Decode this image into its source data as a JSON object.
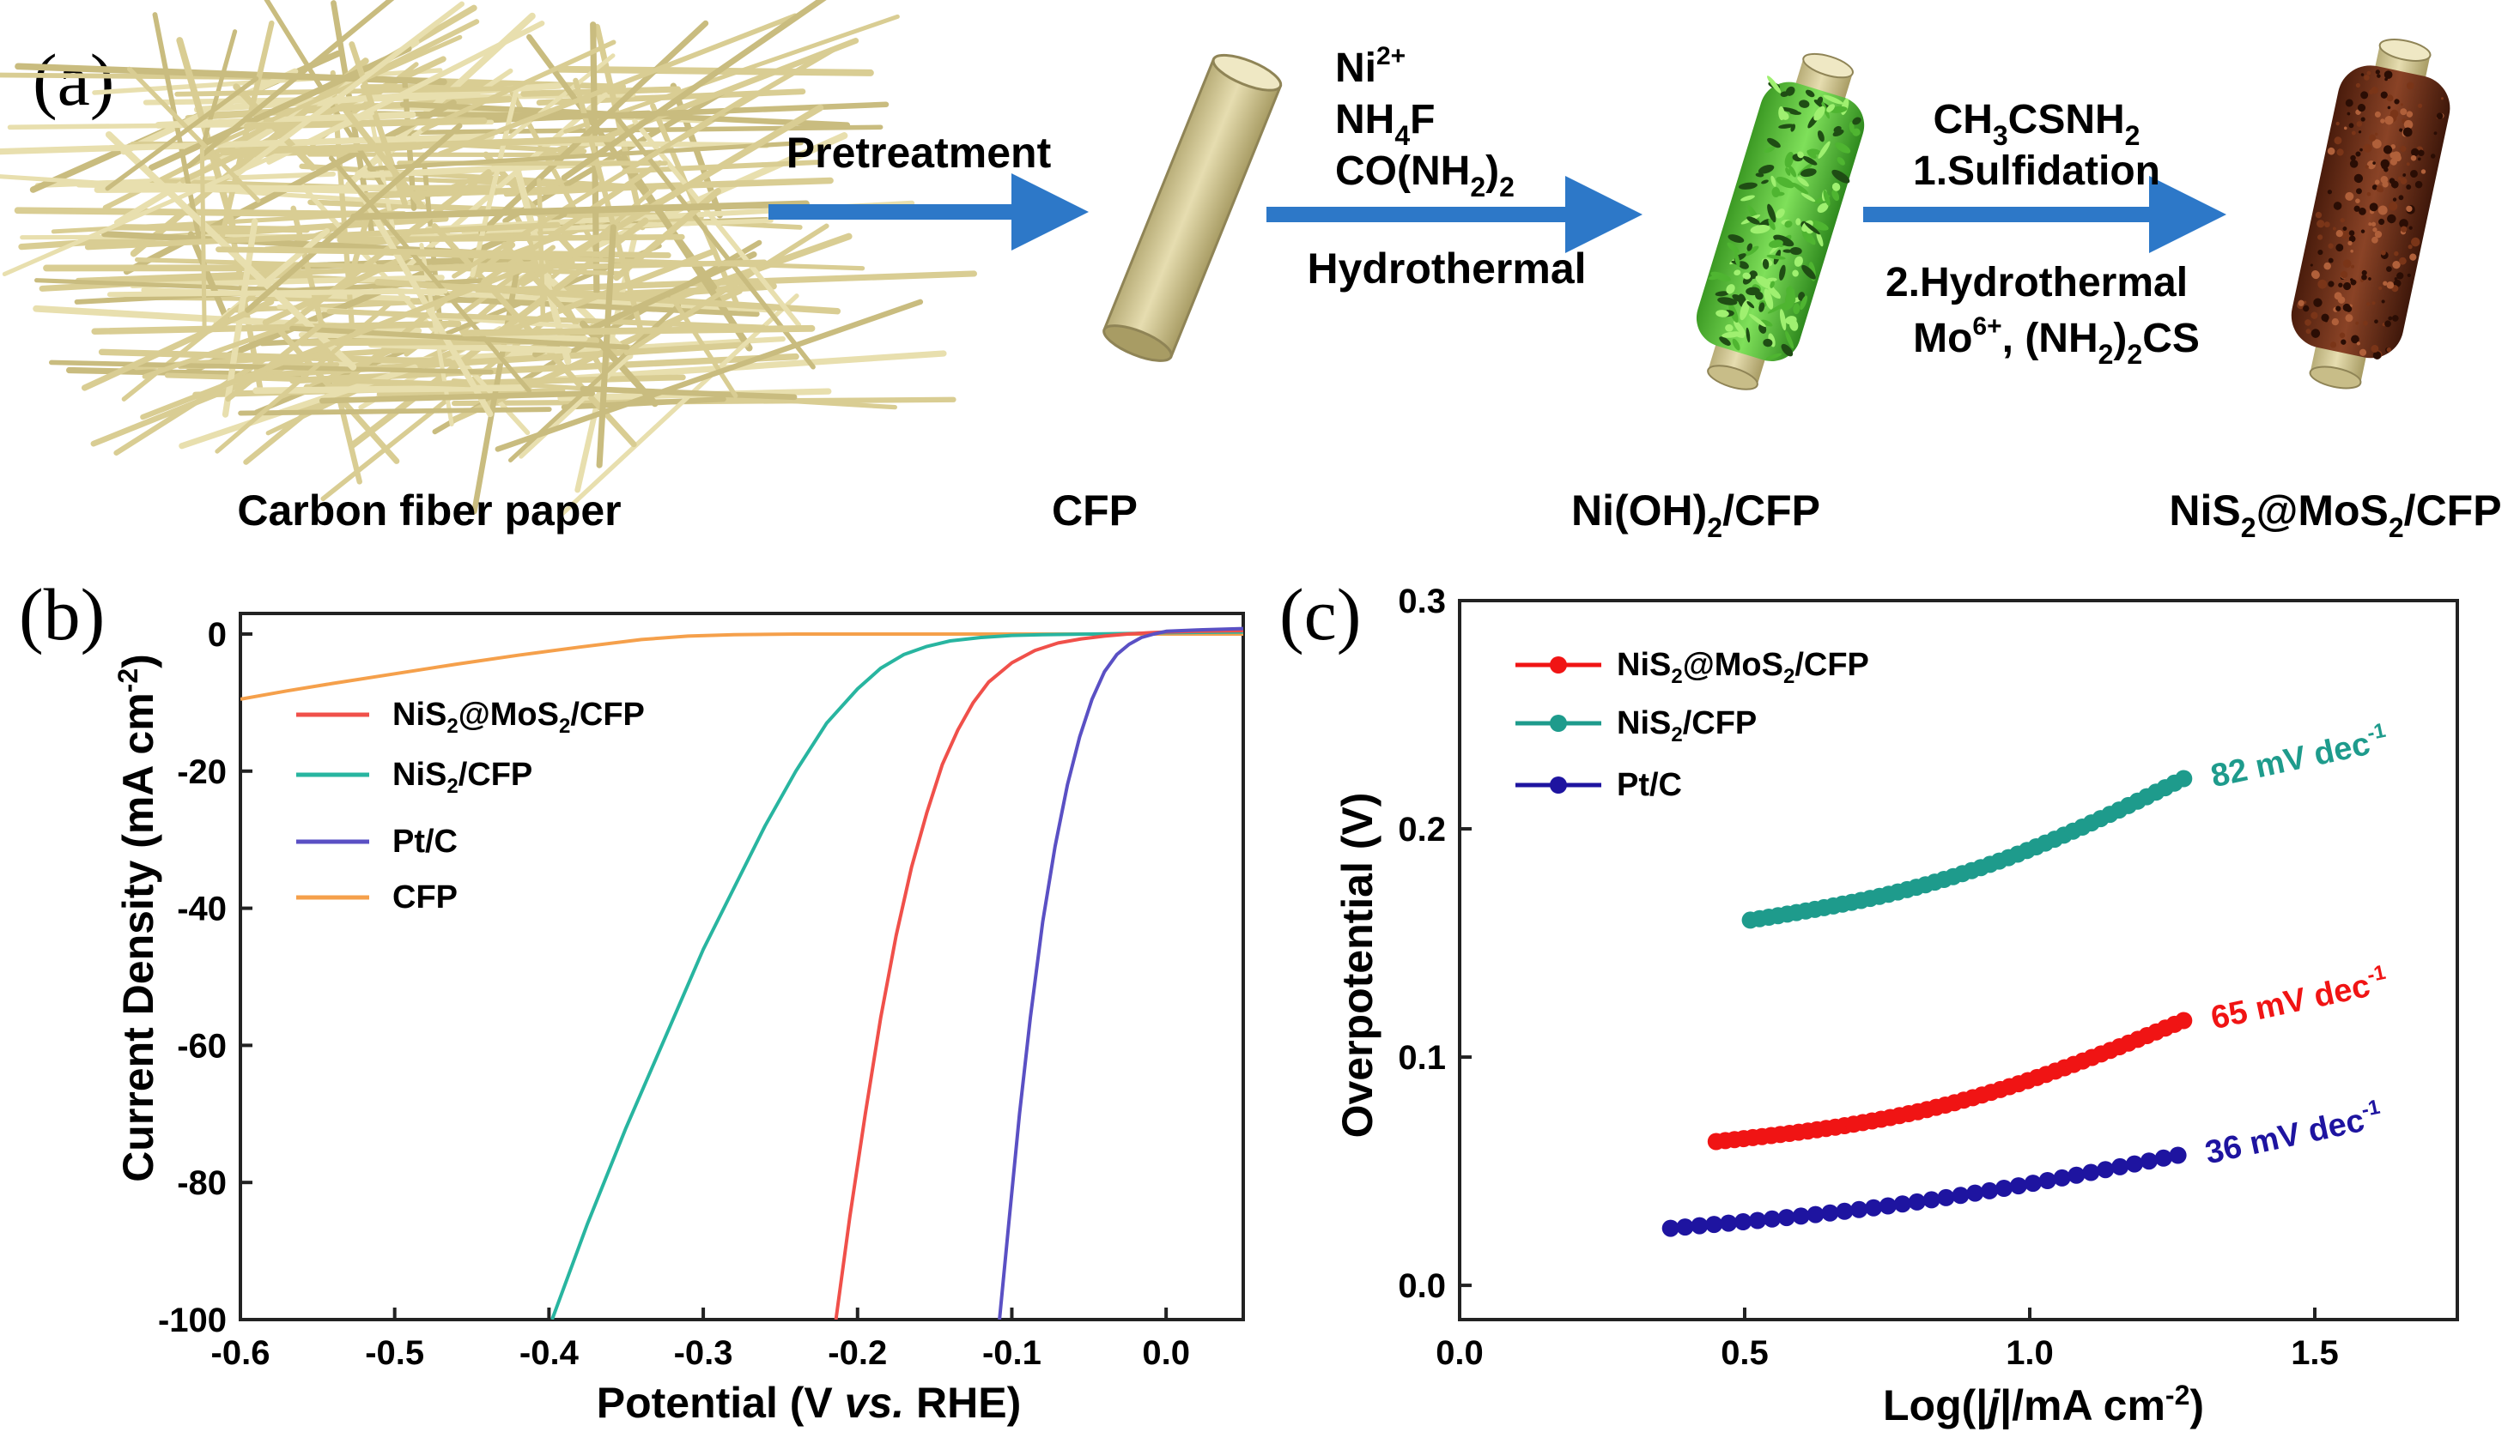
{
  "figure": {
    "panel_a": {
      "label": "(a)",
      "steps": {
        "step1": [
          "Pretreatment"
        ],
        "step2_top": [
          "Ni",
          "2+",
          "NH",
          "4",
          "F",
          "CO(NH",
          "2",
          ")",
          "2"
        ],
        "step2_bottom": "Hydrothermal",
        "step3_top": [
          "CH",
          "3",
          "CSNH",
          "2",
          "1.Sulfidation"
        ],
        "step3_bottom": [
          "2.Hydrothermal",
          "Mo",
          "6+",
          ", (NH",
          "2",
          ")",
          "2",
          "CS"
        ]
      },
      "materials": {
        "m1": "Carbon fiber paper",
        "m2": "CFP",
        "m3": [
          "Ni(OH)",
          "2",
          "/CFP"
        ],
        "m4": [
          "NiS",
          "2",
          "@MoS",
          "2",
          "/CFP"
        ]
      },
      "colors": {
        "fiber": "#ddd29b",
        "arrow": "#2d78c8",
        "nioh": "#58c03c",
        "nis2mos2": "#6b2f1a"
      }
    }
  },
  "chart_data": [
    {
      "panel": "(b)",
      "type": "line",
      "xlabel": [
        "Potential (V ",
        "vs.",
        " RHE)"
      ],
      "ylabel": [
        "Current Density (mA cm",
        "-2",
        ")"
      ],
      "xlim": [
        -0.6,
        0.05
      ],
      "ylim": [
        -100,
        3
      ],
      "xticks": [
        -0.6,
        -0.5,
        -0.4,
        -0.3,
        -0.2,
        -0.1,
        0.0
      ],
      "xtick_labels": [
        "-0.6",
        "-0.5",
        "-0.4",
        "-0.3",
        "-0.2",
        "-0.1",
        "0.0"
      ],
      "yticks": [
        0,
        -20,
        -40,
        -60,
        -80,
        -100
      ],
      "ytick_labels": [
        "0",
        "-20",
        "-40",
        "-60",
        "-80",
        "-100"
      ],
      "series": [
        {
          "name": [
            "NiS",
            "2",
            "@MoS",
            "2",
            "/CFP"
          ],
          "color": "#f0504a",
          "x": [
            -0.214,
            -0.205,
            -0.195,
            -0.185,
            -0.175,
            -0.165,
            -0.155,
            -0.145,
            -0.135,
            -0.125,
            -0.115,
            -0.1,
            -0.085,
            -0.07,
            -0.055,
            -0.04,
            -0.025,
            -0.01,
            0.0,
            0.02,
            0.05
          ],
          "y": [
            -100,
            -85,
            -70,
            -56,
            -44,
            -34,
            -26,
            -19,
            -14,
            -10,
            -7,
            -4.2,
            -2.4,
            -1.3,
            -0.7,
            -0.3,
            0.0,
            0.2,
            0.3,
            0.4,
            0.5
          ]
        },
        {
          "name": [
            "NiS",
            "2",
            "/CFP"
          ],
          "color": "#28b5a0",
          "x": [
            -0.398,
            -0.375,
            -0.35,
            -0.325,
            -0.3,
            -0.28,
            -0.26,
            -0.24,
            -0.22,
            -0.2,
            -0.185,
            -0.17,
            -0.155,
            -0.14,
            -0.12,
            -0.1,
            -0.08,
            -0.05,
            -0.02,
            0.0,
            0.05
          ],
          "y": [
            -100,
            -86,
            -72,
            -59,
            -46,
            -37,
            -28,
            -20,
            -13,
            -8,
            -5,
            -3,
            -1.8,
            -1.0,
            -0.5,
            -0.2,
            -0.1,
            0.0,
            0.1,
            0.2,
            0.3
          ]
        },
        {
          "name": [
            "Pt/C"
          ],
          "color": "#5a50c4",
          "x": [
            -0.108,
            -0.102,
            -0.095,
            -0.088,
            -0.08,
            -0.072,
            -0.064,
            -0.056,
            -0.048,
            -0.04,
            -0.032,
            -0.024,
            -0.016,
            -0.008,
            0.0,
            0.02,
            0.05
          ],
          "y": [
            -100,
            -86,
            -70,
            -56,
            -42,
            -31,
            -22,
            -15,
            -9.5,
            -5.5,
            -3,
            -1.5,
            -0.5,
            0.0,
            0.4,
            0.6,
            0.8
          ]
        },
        {
          "name": [
            "CFP"
          ],
          "color": "#f5a04b",
          "x": [
            -0.6,
            -0.57,
            -0.54,
            -0.5,
            -0.46,
            -0.42,
            -0.38,
            -0.34,
            -0.31,
            -0.28,
            -0.24,
            -0.2,
            -0.15,
            -0.1,
            0.0,
            0.05
          ],
          "y": [
            -9.5,
            -8.3,
            -7.2,
            -5.8,
            -4.4,
            -3.1,
            -1.9,
            -0.8,
            -0.3,
            -0.1,
            0.0,
            0.0,
            0.0,
            0.0,
            0.0,
            0.0
          ]
        }
      ]
    },
    {
      "panel": "(c)",
      "type": "scatter",
      "xlabel": [
        "Log(|",
        "j",
        "|/mA cm",
        "-2",
        ")"
      ],
      "ylabel": [
        "Overpotential (V)"
      ],
      "xlim": [
        0.0,
        1.75
      ],
      "ylim": [
        -0.015,
        0.3
      ],
      "xticks": [
        0.0,
        0.5,
        1.0,
        1.5
      ],
      "xtick_labels": [
        "0.0",
        "0.5",
        "1.0",
        "1.5"
      ],
      "yticks": [
        0.0,
        0.1,
        0.2,
        0.3
      ],
      "ytick_labels": [
        "0.0",
        "0.1",
        "0.2",
        "0.3"
      ],
      "series": [
        {
          "name": [
            "NiS",
            "2",
            "@MoS",
            "2",
            "/CFP"
          ],
          "color": "#f01414",
          "x_start": 0.45,
          "x_end": 1.27,
          "y_start": 0.063,
          "y_end": 0.116,
          "curve": 0.01,
          "count": 52,
          "annotation": [
            "65 mV dec",
            "-1"
          ]
        },
        {
          "name": [
            "NiS",
            "2",
            "/CFP"
          ],
          "color": "#1e9b8c",
          "x_start": 0.51,
          "x_end": 1.27,
          "y_start": 0.16,
          "y_end": 0.222,
          "curve": 0.01,
          "count": 48,
          "annotation": [
            "82 mV dec",
            "-1"
          ]
        },
        {
          "name": [
            "Pt/C"
          ],
          "color": "#1e14a0",
          "x_start": 0.37,
          "x_end": 1.26,
          "y_start": 0.025,
          "y_end": 0.057,
          "curve": 0.004,
          "count": 36,
          "annotation": [
            "36 mV dec",
            "-1"
          ]
        }
      ]
    }
  ]
}
